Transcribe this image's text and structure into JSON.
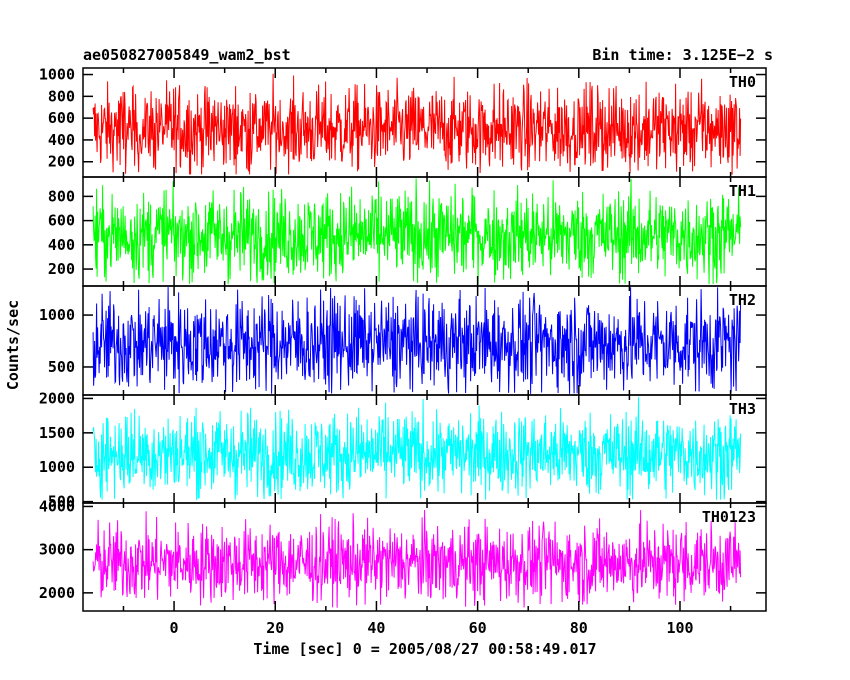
{
  "chart_data": {
    "type": "line",
    "title": "ae050827005849_wam2_bst",
    "subtitle": "Bin time: 3.125E−2 s",
    "xlabel": "Time [sec] 0 = 2005/08/27 00:58:49.017",
    "ylabel": "Counts/sec",
    "xlim": [
      -18,
      117
    ],
    "data_x_range": [
      -16,
      112
    ],
    "x_ticks_major": [
      0,
      20,
      40,
      60,
      80,
      100
    ],
    "x_tick_labels": [
      "0",
      "20",
      "40",
      "60",
      "80",
      "100"
    ],
    "panels": [
      {
        "name": "TH0",
        "color": "#ff0000",
        "ylim": [
          60,
          1060
        ],
        "y_ticks": [
          200,
          400,
          600,
          800,
          1000
        ],
        "y_tick_labels": [
          "200",
          "400",
          "600",
          "800",
          "1000"
        ],
        "mean": 500,
        "spread": 190,
        "min": 80,
        "max": 1050
      },
      {
        "name": "TH1",
        "color": "#00ff00",
        "ylim": [
          60,
          960
        ],
        "y_ticks": [
          200,
          400,
          600,
          800
        ],
        "y_tick_labels": [
          "200",
          "400",
          "600",
          "800"
        ],
        "mean": 480,
        "spread": 180,
        "min": 70,
        "max": 950
      },
      {
        "name": "TH2",
        "color": "#0000ff",
        "ylim": [
          230,
          1280
        ],
        "y_ticks": [
          500,
          1000
        ],
        "y_tick_labels": [
          "500",
          "1000"
        ],
        "mean": 730,
        "spread": 230,
        "min": 240,
        "max": 1270
      },
      {
        "name": "TH3",
        "color": "#00ffff",
        "ylim": [
          480,
          2050
        ],
        "y_ticks": [
          500,
          1000,
          1500,
          2000
        ],
        "y_tick_labels": [
          "500",
          "1000",
          "1500",
          "2000"
        ],
        "mean": 1200,
        "spread": 300,
        "min": 520,
        "max": 2040
      },
      {
        "name": "TH0123",
        "color": "#ff00ff",
        "ylim": [
          1580,
          4080
        ],
        "y_ticks": [
          2000,
          3000,
          4000
        ],
        "y_tick_labels": [
          "2000",
          "3000",
          "4000"
        ],
        "mean": 2700,
        "spread": 450,
        "min": 1650,
        "max": 4000
      }
    ]
  }
}
